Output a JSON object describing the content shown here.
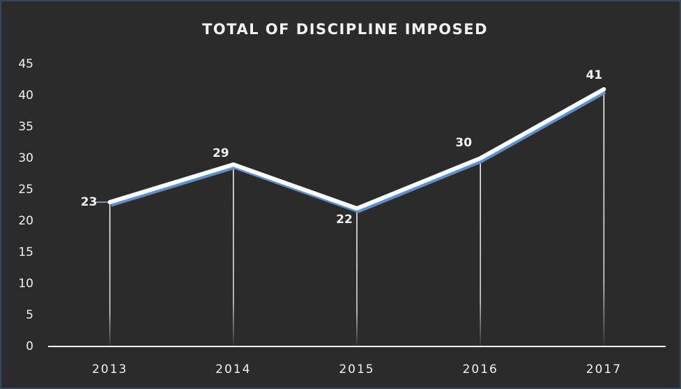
{
  "chart_data": {
    "type": "line",
    "title": "TOTAL OF DISCIPLINE IMPOSED",
    "categories": [
      "2013",
      "2014",
      "2015",
      "2016",
      "2017"
    ],
    "values": [
      23,
      29,
      22,
      30,
      41
    ],
    "color": "#ffffff",
    "ylim": [
      0,
      45
    ],
    "yticks": [
      0,
      5,
      10,
      15,
      20,
      25,
      30,
      35,
      40,
      45
    ],
    "grid": false
  }
}
